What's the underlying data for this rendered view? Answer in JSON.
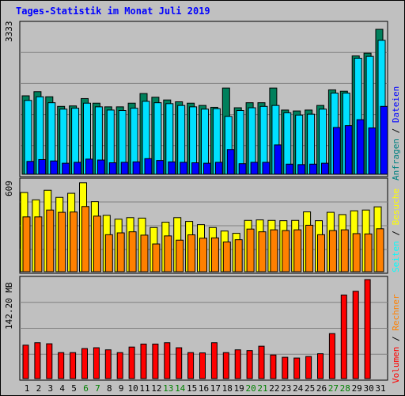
{
  "page_title": "Tages-Statistik im Monat Juli 2019",
  "panels": {
    "top": {
      "ymax_label": "3333"
    },
    "middle": {
      "ymax_label": "609"
    },
    "bottom": {
      "ymax_label": "142.20 MB"
    }
  },
  "right_legend": {
    "top": [
      {
        "text": "Anfragen",
        "color": "#008080"
      },
      {
        "text": " / ",
        "color": "#000000"
      },
      {
        "text": "Dateien",
        "color": "#0000ff"
      }
    ],
    "middle": [
      {
        "text": "Seiten",
        "color": "#00ffff"
      },
      {
        "text": " / ",
        "color": "#000000"
      },
      {
        "text": "Besuche",
        "color": "#ffff00"
      }
    ],
    "bottom": [
      {
        "text": "Volumen",
        "color": "#ff0000"
      },
      {
        "text": " / ",
        "color": "#000000"
      },
      {
        "text": "Rechner",
        "color": "#ff8000"
      }
    ]
  },
  "colors": {
    "hits": "#00805c",
    "files": "#00e0ff",
    "pages": "#0000ff",
    "visits": "#ffff00",
    "sites": "#ff8000",
    "volume": "#ff0000",
    "weekend_label": "#008000",
    "weekday_label": "#000000"
  },
  "chart_data": [
    {
      "type": "bar",
      "title": "Anfragen / Dateien / Seiten",
      "categories": [
        "1",
        "2",
        "3",
        "4",
        "5",
        "6",
        "7",
        "8",
        "9",
        "10",
        "11",
        "12",
        "13",
        "14",
        "15",
        "16",
        "17",
        "18",
        "19",
        "20",
        "21",
        "22",
        "23",
        "24",
        "25",
        "26",
        "27",
        "28",
        "29",
        "30",
        "31"
      ],
      "weekend_days": [
        "6",
        "7",
        "13",
        "14",
        "20",
        "21",
        "27",
        "28"
      ],
      "ylim": [
        0,
        3333
      ],
      "series": [
        {
          "name": "Anfragen",
          "values": [
            1710,
            1800,
            1690,
            1480,
            1490,
            1650,
            1550,
            1470,
            1470,
            1550,
            1760,
            1680,
            1620,
            1580,
            1550,
            1500,
            1460,
            1880,
            1450,
            1560,
            1560,
            1880,
            1400,
            1380,
            1400,
            1500,
            1840,
            1810,
            2580,
            2640,
            3160
          ]
        },
        {
          "name": "Dateien",
          "values": [
            1610,
            1690,
            1560,
            1420,
            1440,
            1550,
            1470,
            1400,
            1390,
            1440,
            1590,
            1560,
            1540,
            1500,
            1470,
            1420,
            1430,
            1260,
            1390,
            1450,
            1480,
            1500,
            1340,
            1290,
            1310,
            1420,
            1770,
            1770,
            2530,
            2570,
            2920
          ]
        },
        {
          "name": "Seiten",
          "values": [
            280,
            320,
            290,
            240,
            260,
            330,
            310,
            250,
            260,
            270,
            340,
            300,
            270,
            260,
            250,
            240,
            260,
            540,
            230,
            260,
            260,
            640,
            220,
            210,
            220,
            240,
            1020,
            1060,
            1190,
            1010,
            1480
          ]
        }
      ]
    },
    {
      "type": "bar",
      "title": "Besuche / Rechner",
      "categories": [
        "1",
        "2",
        "3",
        "4",
        "5",
        "6",
        "7",
        "8",
        "9",
        "10",
        "11",
        "12",
        "13",
        "14",
        "15",
        "16",
        "17",
        "18",
        "19",
        "20",
        "21",
        "22",
        "23",
        "24",
        "25",
        "26",
        "27",
        "28",
        "29",
        "30",
        "31"
      ],
      "ylim": [
        0,
        609
      ],
      "series": [
        {
          "name": "Besuche",
          "values": [
            520,
            472,
            535,
            488,
            515,
            584,
            460,
            370,
            345,
            355,
            352,
            290,
            325,
            355,
            330,
            309,
            290,
            267,
            252,
            337,
            340,
            337,
            335,
            337,
            393,
            335,
            390,
            375,
            400,
            405,
            426
          ]
        },
        {
          "name": "Rechner",
          "values": [
            360,
            360,
            405,
            390,
            392,
            428,
            365,
            243,
            255,
            262,
            240,
            182,
            235,
            207,
            242,
            220,
            222,
            195,
            210,
            280,
            262,
            275,
            270,
            275,
            305,
            243,
            270,
            275,
            250,
            248,
            282
          ]
        }
      ]
    },
    {
      "type": "bar",
      "title": "Volumen",
      "categories": [
        "1",
        "2",
        "3",
        "4",
        "5",
        "6",
        "7",
        "8",
        "9",
        "10",
        "11",
        "12",
        "13",
        "14",
        "15",
        "16",
        "17",
        "18",
        "19",
        "20",
        "21",
        "22",
        "23",
        "24",
        "25",
        "26",
        "27",
        "28",
        "29",
        "30",
        "31"
      ],
      "ylim": [
        0,
        142.2
      ],
      "ylabel": "MB",
      "series": [
        {
          "name": "Volumen",
          "values": [
            48.0,
            51.5,
            50.0,
            37.3,
            37.3,
            43.1,
            44.3,
            41.3,
            37.3,
            45.3,
            49.6,
            49.6,
            51.5,
            44.3,
            37.3,
            36.9,
            51.5,
            37.3,
            41.3,
            40.2,
            46.5,
            33.9,
            30.6,
            29.5,
            31.7,
            35.7,
            64.6,
            120.0,
            125.4,
            142.2,
            null
          ]
        }
      ]
    }
  ]
}
